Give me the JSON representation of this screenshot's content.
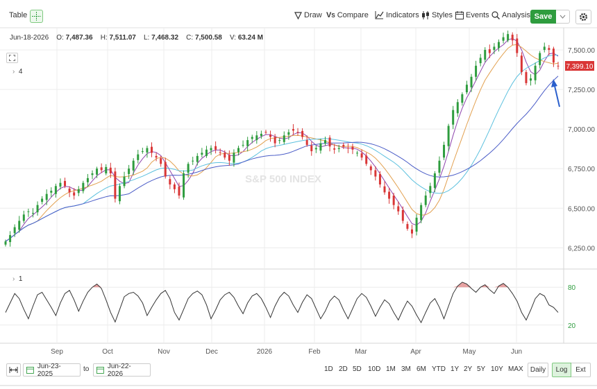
{
  "toolbar": {
    "table_label": "Table",
    "draw_label": "Draw",
    "compare_label": "Compare",
    "indicators_label": "Indicators",
    "styles_label": "Styles",
    "events_label": "Events",
    "analysis_label": "Analysis",
    "save_label": "Save"
  },
  "ohlc": {
    "date": "Jun-18-2026",
    "open_label": "O:",
    "open": "7,487.36",
    "high_label": "H:",
    "high": "7,511.07",
    "low_label": "L:",
    "low": "7,468.32",
    "close_label": "C:",
    "close": "7,500.58",
    "volume_label": "V:",
    "volume": "63.24 M"
  },
  "studies": {
    "main_count": "4",
    "lower_count": "1"
  },
  "watermark": "S&P 500 INDEX",
  "last_price": "7,399.10",
  "colors": {
    "up": "#2e9c3e",
    "down": "#d93636",
    "ma_short": "#8e44ad",
    "ma_mid": "#e2a04f",
    "ma_long_1": "#5bc0de",
    "ma_long_2": "#4a5cc7",
    "price_tag": "#d93636",
    "osc_line": "#333333",
    "osc_fill": "#e08a8a",
    "arrow": "#2a5fcc",
    "accent": "#2e9c3e"
  },
  "chart_data": [
    {
      "type": "candlestick",
      "x_axis_labels": [
        "Sep",
        "Oct",
        "Nov",
        "Dec",
        "2026",
        "Feb",
        "Mar",
        "Apr",
        "May",
        "Jun"
      ],
      "y_ticks": [
        "7,500.00",
        "7,250.00",
        "7,000.00",
        "6,750.00",
        "6,500.00",
        "6,250.00"
      ],
      "ylim": [
        6120,
        7640
      ],
      "grid": true,
      "series": [
        {
          "values": [
            6290,
            6330,
            6380,
            6420,
            6460,
            6480,
            6470,
            6520,
            6560,
            6590,
            6610,
            6640,
            6660,
            6640,
            6600,
            6580,
            6620,
            6660,
            6690,
            6720,
            6750,
            6740,
            6760,
            6720,
            6560,
            6640,
            6700,
            6750,
            6800,
            6840,
            6860,
            6880,
            6850,
            6820,
            6780,
            6700,
            6650,
            6620,
            6580,
            6720,
            6780,
            6800,
            6830,
            6850,
            6870,
            6880,
            6870,
            6850,
            6820,
            6800,
            6850,
            6880,
            6900,
            6930,
            6950,
            6960,
            6970,
            6980,
            6950,
            6910,
            6930,
            6960,
            6980,
            6990,
            6980,
            6950,
            6900,
            6860,
            6880,
            6910,
            6930,
            6890,
            6870,
            6880,
            6890,
            6880,
            6870,
            6850,
            6820,
            6780,
            6740,
            6700,
            6650,
            6600,
            6560,
            6520,
            6480,
            6420,
            6370,
            6340,
            6440,
            6520,
            6580,
            6640,
            6720,
            6800,
            6900,
            7020,
            7120,
            7170,
            7220,
            7280,
            7330,
            7400,
            7450,
            7500,
            7480,
            7520,
            7550,
            7580,
            7600,
            7560,
            7480,
            7360,
            7290,
            7320,
            7400,
            7480,
            7520,
            7500,
            7420,
            7399
          ]
        }
      ]
    },
    {
      "type": "line",
      "name": "oscillator",
      "y_ticks": [
        "80",
        "20"
      ],
      "ylim": [
        0,
        100
      ],
      "values": [
        40,
        55,
        70,
        62,
        45,
        30,
        50,
        68,
        72,
        60,
        48,
        35,
        55,
        70,
        75,
        60,
        42,
        58,
        72,
        80,
        85,
        78,
        60,
        40,
        25,
        45,
        65,
        70,
        72,
        66,
        55,
        35,
        48,
        60,
        70,
        75,
        62,
        40,
        28,
        45,
        62,
        70,
        74,
        68,
        52,
        30,
        44,
        60,
        68,
        72,
        64,
        50,
        38,
        55,
        66,
        70,
        62,
        48,
        32,
        50,
        64,
        72,
        66,
        52,
        40,
        56,
        68,
        62,
        46,
        30,
        42,
        58,
        66,
        60,
        44,
        30,
        46,
        62,
        70,
        64,
        50,
        34,
        48,
        60,
        54,
        40,
        28,
        44,
        58,
        50,
        36,
        24,
        40,
        55,
        62,
        48,
        30,
        50,
        70,
        82,
        88,
        85,
        78,
        72,
        80,
        84,
        76,
        70,
        82,
        86,
        80,
        70,
        58,
        40,
        28,
        44,
        62,
        70,
        66,
        52,
        48,
        40
      ]
    }
  ]
}
